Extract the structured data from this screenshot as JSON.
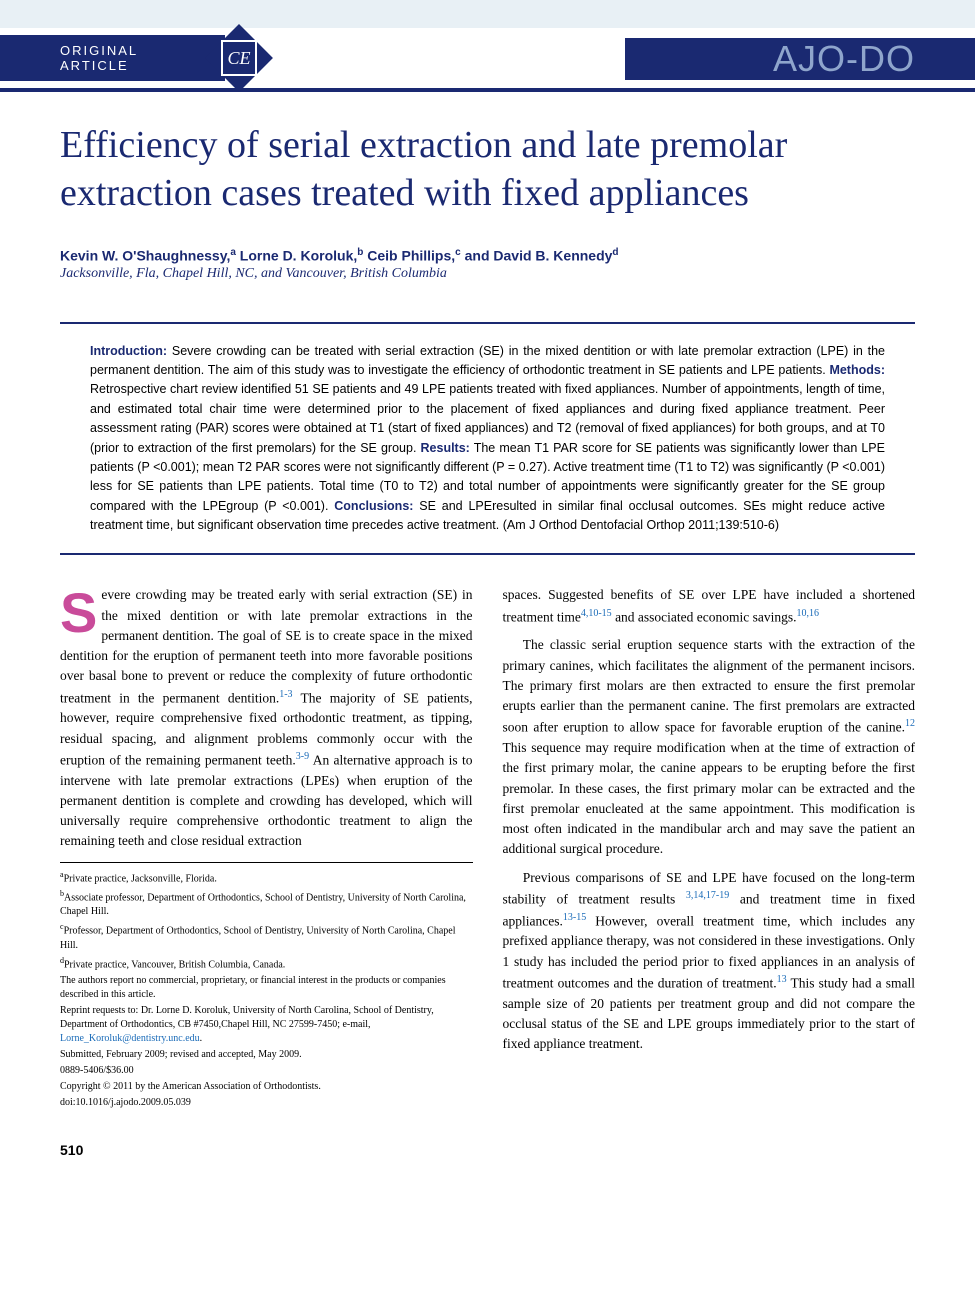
{
  "header": {
    "section_label": "ORIGINAL ARTICLE",
    "ce_badge": "CE",
    "journal_logo": "AJO-DO"
  },
  "title": "Efficiency of serial extraction and late premolar extraction cases treated with fixed appliances",
  "authors_html": "Kevin W. O'Shaughnessy,<sup>a</sup> Lorne D. Koroluk,<sup>b</sup> Ceib Phillips,<sup>c</sup> and David B. Kennedy<sup>d</sup>",
  "affiliation_line": "Jacksonville, Fla, Chapel Hill, NC, and Vancouver, British Columbia",
  "abstract": {
    "intro_label": "Introduction:",
    "intro_text": " Severe crowding can be treated with serial extraction (SE) in the mixed dentition or with late premolar extraction (LPE) in the permanent dentition. The aim of this study was to investigate the efficiency of orthodontic treatment in SE patients and LPE patients. ",
    "methods_label": "Methods:",
    "methods_text": " Retrospective chart review identified 51 SE patients and 49 LPE patients treated with fixed appliances. Number of appointments, length of time, and estimated total chair time were determined prior to the placement of fixed appliances and during fixed appliance treatment. Peer assessment rating (PAR) scores were obtained at T1 (start of fixed appliances) and T2 (removal of fixed appliances) for both groups, and at T0 (prior to extraction of the first premolars) for the SE group. ",
    "results_label": "Results:",
    "results_text": " The mean T1 PAR score for SE patients was significantly lower than LPE patients (P <0.001); mean T2 PAR scores were not significantly different (P = 0.27). Active treatment time (T1 to T2) was significantly (P <0.001) less for SE patients than LPE patients. Total time (T0 to T2) and total number of appointments were significantly greater for the SE group compared with the LPEgroup (P <0.001). ",
    "conclusions_label": "Conclusions:",
    "conclusions_text": " SE and LPEresulted in similar final occlusal outcomes. SEs might reduce active treatment time, but significant observation time precedes active treatment. (Am J Orthod Dentofacial Orthop 2011;139:510-6)"
  },
  "body": {
    "col1_p1_dropcap": "S",
    "col1_p1_rest": "evere crowding may be treated early with serial extraction (SE) in the mixed dentition or with late premolar extractions in the permanent dentition. The goal of SE is to create space in the mixed dentition for the eruption of permanent teeth into more favorable positions over basal bone to prevent or reduce the complexity of future orthodontic treatment in the permanent dentition.",
    "col1_p1_ref1": "1-3",
    "col1_p1_cont": " The majority of SE patients, however, require comprehensive fixed orthodontic treatment, as tipping, residual spacing, and alignment problems commonly occur with the eruption of the remaining permanent teeth.",
    "col1_p1_ref2": "3-9",
    "col1_p1_cont2": " An alternative approach is to intervene with late premolar extractions (LPEs) when eruption of the permanent dentition is complete and crowding has developed, which will universally require comprehensive orthodontic treatment to align the remaining teeth and close residual extraction",
    "col2_p1": "spaces. Suggested benefits of SE over LPE have included a shortened treatment time",
    "col2_p1_ref1": "4,10-15",
    "col2_p1_cont": " and associated economic savings.",
    "col2_p1_ref2": "10,16",
    "col2_p2": "The classic serial eruption sequence starts with the extraction of the primary canines, which facilitates the alignment of the permanent incisors. The primary first molars are then extracted to ensure the first premolar erupts earlier than the permanent canine. The first premolars are extracted soon after eruption to allow space for favorable eruption of the canine.",
    "col2_p2_ref1": "12",
    "col2_p2_cont": " This sequence may require modification when at the time of extraction of the first primary molar, the canine appears to be erupting before the first premolar. In these cases, the first primary molar can be extracted and the first premolar enucleated at the same appointment. This modification is most often indicated in the mandibular arch and may save the patient an additional surgical procedure.",
    "col2_p3": "Previous comparisons of SE and LPE have focused on the long-term stability of treatment results ",
    "col2_p3_ref1": "3,14,17-19",
    "col2_p3_cont": " and treatment time in fixed appliances.",
    "col2_p3_ref2": "13-15",
    "col2_p3_cont2": " However, overall treatment time, which includes any prefixed appliance therapy, was not considered in these investigations. Only 1 study has included the period prior to fixed appliances in an analysis of treatment outcomes and the duration of treatment.",
    "col2_p3_ref3": "13",
    "col2_p3_cont3": " This study had a small sample size of 20 patients per treatment group and did not compare the occlusal status of the SE and LPE groups immediately prior to the start of fixed appliance treatment."
  },
  "footnotes": {
    "a": "Private practice, Jacksonville, Florida.",
    "b": "Associate professor, Department of Orthodontics, School of Dentistry, University of North Carolina, Chapel Hill.",
    "c": "Professor, Department of Orthodontics, School of Dentistry, University of North Carolina, Chapel Hill.",
    "d": "Private practice, Vancouver, British Columbia, Canada.",
    "disclosure": "The authors report no commercial, proprietary, or financial interest in the products or companies described in this article.",
    "reprint": "Reprint requests to: Dr. Lorne D. Koroluk, University of North Carolina, School of Dentistry, Department of Orthodontics, CB #7450,Chapel Hill, NC 27599-7450; e-mail, ",
    "email": "Lorne_Koroluk@dentistry.unc.edu",
    "email_suffix": ".",
    "submitted": "Submitted, February 2009; revised and accepted, May 2009.",
    "issn": "0889-5406/$36.00",
    "copyright": "Copyright © 2011 by the American Association of Orthodontists.",
    "doi": "doi:10.1016/j.ajodo.2009.05.039"
  },
  "page_number": "510",
  "colors": {
    "brand_blue": "#1a2971",
    "top_band": "#e8f0f5",
    "dropcap": "#c94b9a",
    "ref_link": "#1a6bb8",
    "logo_light": "#8fa5cc"
  }
}
